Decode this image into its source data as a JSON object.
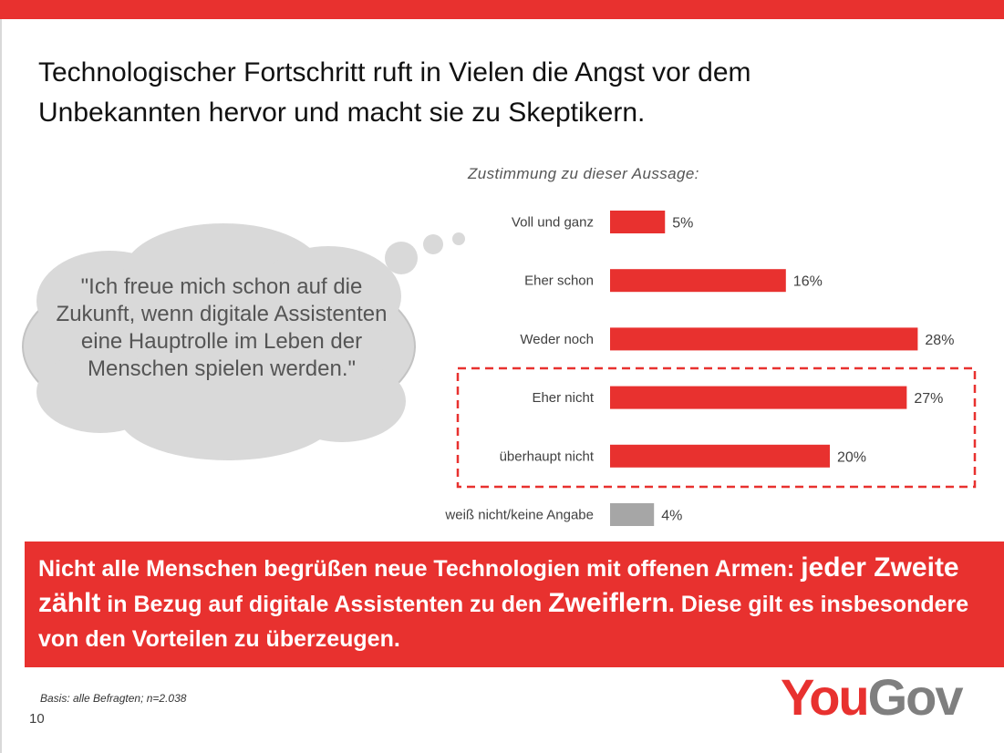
{
  "title": {
    "line1": "Technologischer Fortschritt ruft in Vielen die Angst vor dem",
    "line2": "Unbekannten hervor und macht sie zu Skeptikern."
  },
  "quote": "\"Ich freue mich schon auf die Zukunft, wenn digitale Assistenten eine Hauptrolle im Leben der Menschen spielen werden.\"",
  "chart_data": {
    "type": "bar",
    "orientation": "horizontal",
    "title": "Zustimmung zu dieser Aussage:",
    "categories": [
      "Voll und ganz",
      "Eher schon",
      "Weder noch",
      "Eher nicht",
      "überhaupt nicht",
      "weiß nicht/keine Angabe"
    ],
    "values": [
      5,
      16,
      28,
      27,
      20,
      4
    ],
    "value_labels": [
      "5%",
      "16%",
      "28%",
      "27%",
      "20%",
      "4%"
    ],
    "unit": "%",
    "highlighted": [
      "Eher nicht",
      "überhaupt nicht"
    ],
    "colors": [
      "#e8312f",
      "#e8312f",
      "#e8312f",
      "#e8312f",
      "#e8312f",
      "#a6a6a6"
    ]
  },
  "banner": {
    "part1": "Nicht alle Menschen begrüßen neue Technologien mit offenen Armen:",
    "part2": "jeder Zweite zählt",
    "part3": "in Bezug auf digitale Assistenten zu den",
    "part4": "Zweiflern",
    "part5": ". Diese gilt es insbesondere von den Vorteilen zu überzeugen."
  },
  "footer": {
    "basis": "Basis: alle Befragten; n=2.038",
    "page": "10"
  },
  "logo": {
    "part1": "You",
    "part2": "Gov"
  },
  "colors": {
    "accent": "#e8312f",
    "neutral_bar": "#a6a6a6",
    "cloud": "#d9d9d9"
  }
}
